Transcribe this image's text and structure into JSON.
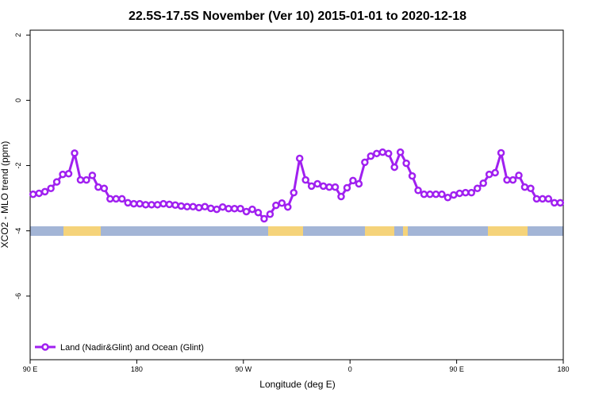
{
  "chart_data": {
    "type": "line",
    "title": "22.5S-17.5S November (Ver 10)   2015-01-01 to 2020-12-18",
    "x_label": "Longitude (deg E)",
    "y_label": "XCO2 - MLO trend (ppm)",
    "x": [
      92.5,
      97.5,
      102.5,
      107.5,
      112.5,
      117.5,
      122.5,
      127.5,
      132.5,
      137.5,
      142.5,
      147.5,
      152.5,
      157.5,
      162.5,
      167.5,
      172.5,
      177.5,
      182.5,
      187.5,
      192.5,
      197.5,
      202.5,
      207.5,
      212.5,
      217.5,
      222.5,
      227.5,
      232.5,
      237.5,
      242.5,
      247.5,
      252.5,
      257.5,
      262.5,
      267.5,
      272.5,
      277.5,
      282.5,
      287.5,
      292.5,
      297.5,
      302.5,
      307.5,
      312.5,
      317.5,
      322.5,
      327.5,
      332.5,
      337.5,
      342.5,
      347.5,
      352.5,
      357.5,
      362.5,
      367.5,
      372.5,
      377.5,
      382.5,
      387.5,
      392.5,
      397.5,
      402.5,
      407.5,
      412.5,
      417.5,
      422.5,
      427.5,
      432.5,
      437.5,
      442.5,
      447.5,
      452.5,
      457.5,
      462.5,
      467.5,
      472.5,
      477.5,
      482.5,
      487.5,
      492.5,
      497.5,
      502.5,
      507.5,
      512.5,
      517.5,
      522.5,
      527.5,
      532.5,
      537.5
    ],
    "series": [
      {
        "name": "Land (Nadir&Glint) and Ocean (Glint)",
        "color": "#a020f0",
        "values": [
          -2.88,
          -2.85,
          -2.8,
          -2.7,
          -2.5,
          -2.27,
          -2.25,
          -1.62,
          -2.44,
          -2.44,
          -2.3,
          -2.66,
          -2.7,
          -3.02,
          -3.02,
          -3.02,
          -3.14,
          -3.17,
          -3.17,
          -3.2,
          -3.2,
          -3.2,
          -3.17,
          -3.19,
          -3.21,
          -3.24,
          -3.26,
          -3.26,
          -3.29,
          -3.26,
          -3.31,
          -3.34,
          -3.27,
          -3.32,
          -3.32,
          -3.32,
          -3.41,
          -3.34,
          -3.44,
          -3.63,
          -3.49,
          -3.22,
          -3.15,
          -3.27,
          -2.83,
          -1.78,
          -2.44,
          -2.63,
          -2.56,
          -2.63,
          -2.66,
          -2.66,
          -2.95,
          -2.68,
          -2.46,
          -2.56,
          -1.9,
          -1.71,
          -1.63,
          -1.59,
          -1.63,
          -2.05,
          -1.59,
          -1.93,
          -2.32,
          -2.76,
          -2.88,
          -2.88,
          -2.88,
          -2.88,
          -2.98,
          -2.9,
          -2.85,
          -2.83,
          -2.83,
          -2.7,
          -2.54,
          -2.27,
          -2.22,
          -1.61,
          -2.44,
          -2.44,
          -2.3,
          -2.66,
          -2.7,
          -3.02,
          -3.02,
          -3.02,
          -3.14,
          -3.14
        ]
      }
    ],
    "xlim": [
      90,
      540
    ],
    "xticks": [
      {
        "value": 90,
        "label": "90 E"
      },
      180,
      {
        "value": 270,
        "label": "90 W"
      },
      {
        "value": 360,
        "label": "0"
      },
      {
        "value": 450,
        "label": "90 E"
      },
      {
        "value": 540,
        "label": "180"
      }
    ],
    "ylim": [
      -7.95,
      2.15
    ],
    "yticks": [
      2,
      0,
      -2,
      -4,
      -6
    ],
    "legend": "bottom-left"
  }
}
